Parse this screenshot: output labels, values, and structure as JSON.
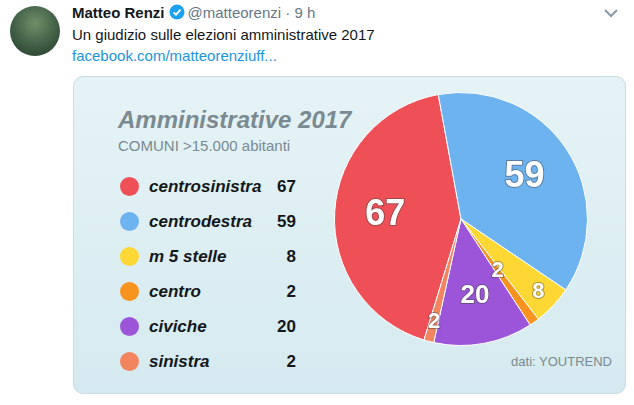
{
  "tweet": {
    "author": "Matteo Renzi",
    "handle": "@matteorenzi",
    "time": "· 9 h",
    "text": "Un giudizio sulle elezioni amministrative 2017",
    "link": "facebook.com/matteorenziuff..."
  },
  "chart_data": {
    "type": "pie",
    "title": "Amministrative 2017",
    "subtitle": "COMUNI >15.000 abitanti",
    "categories": [
      "centrosinistra",
      "centrodestra",
      "m 5 stelle",
      "centro",
      "civiche",
      "sinistra"
    ],
    "values": [
      67,
      59,
      8,
      2,
      20,
      2
    ],
    "colors": [
      "#ef4f57",
      "#6db3f0",
      "#fdd835",
      "#f7931e",
      "#9c55d8",
      "#f2845f"
    ],
    "data_labels": true,
    "legend": "left",
    "annotations": [
      "dati: YOUTREND"
    ]
  }
}
